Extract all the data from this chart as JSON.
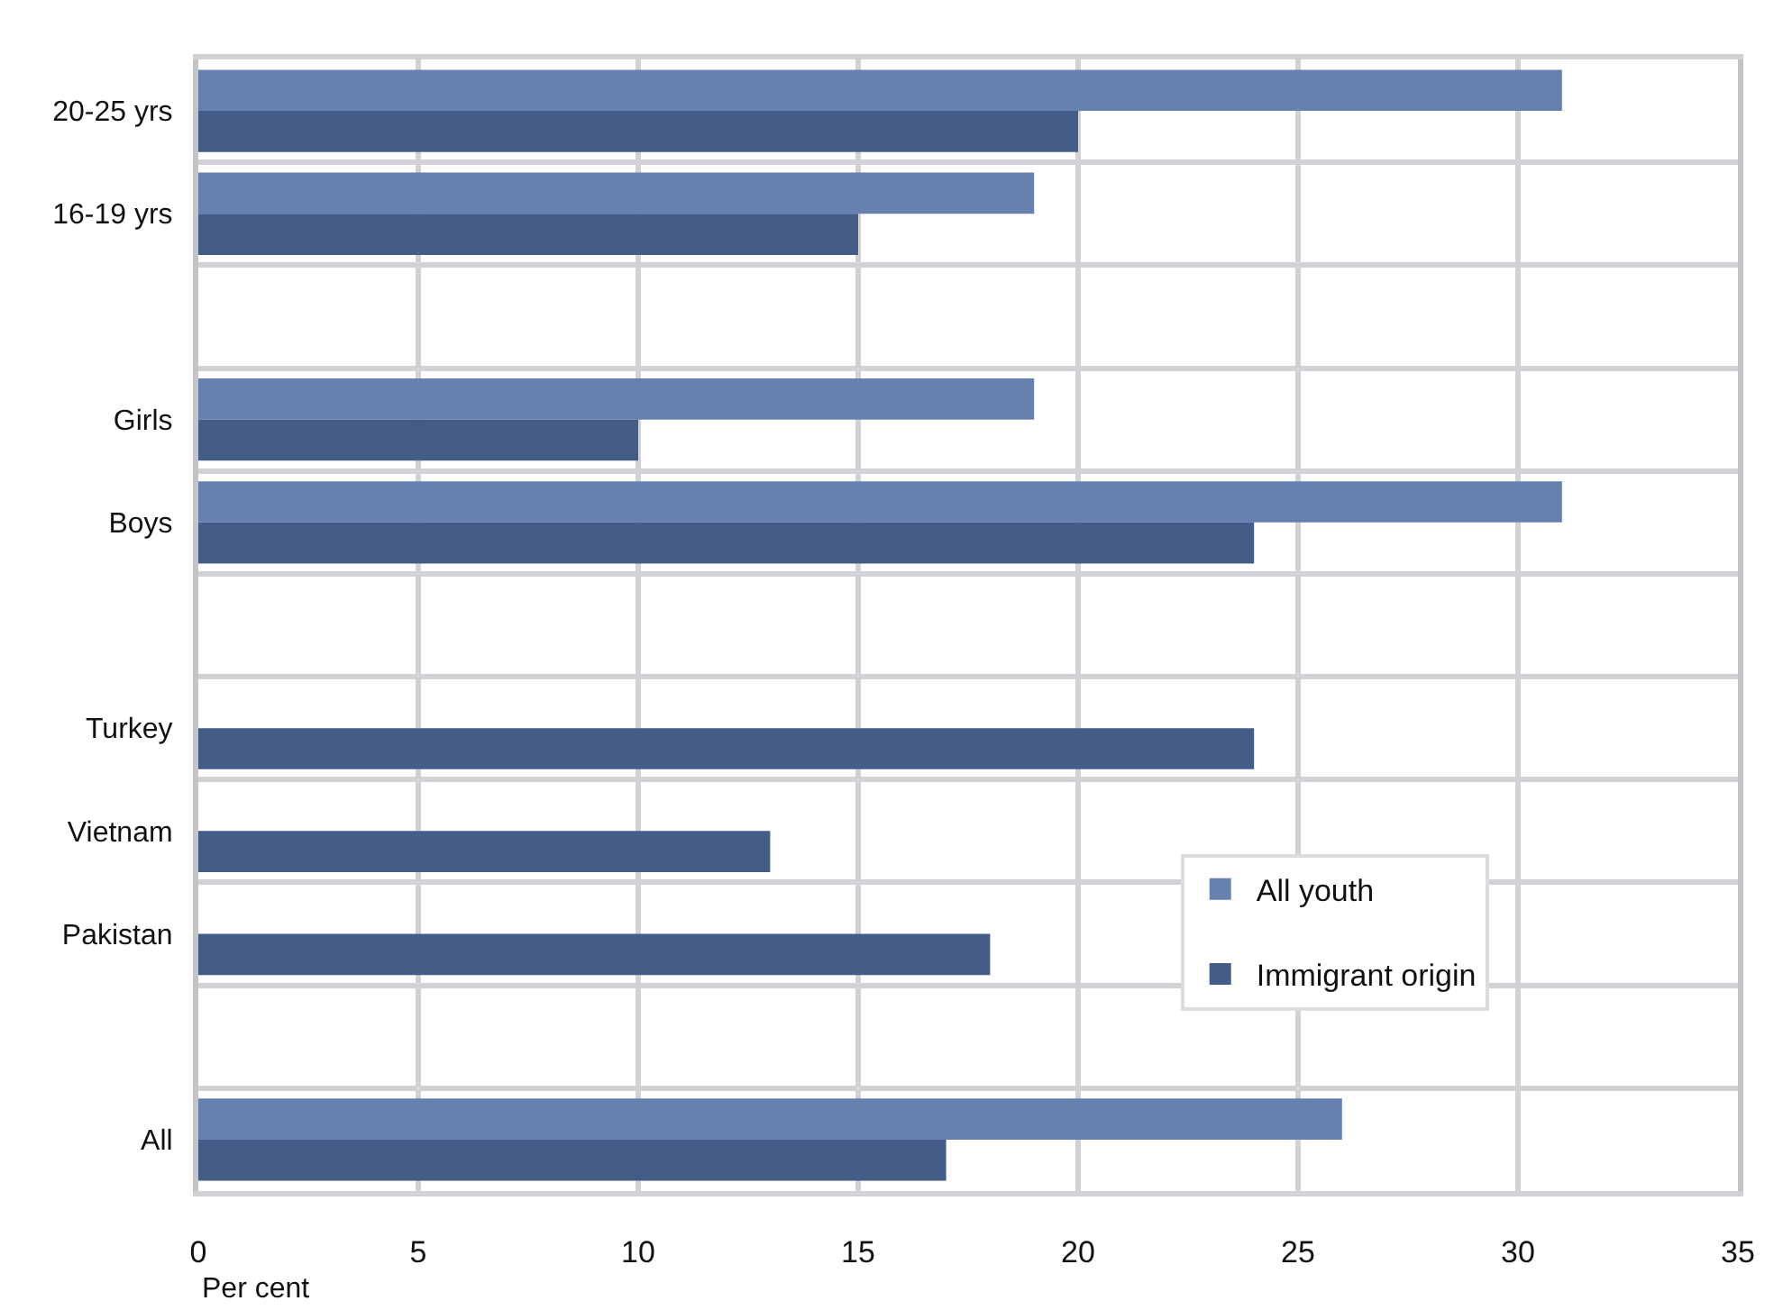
{
  "chart_data": {
    "type": "bar",
    "orientation": "horizontal",
    "categories": [
      "20-25 yrs",
      "16-19 yrs",
      null,
      "Girls",
      "Boys",
      null,
      "Turkey",
      "Vietnam",
      "Pakistan",
      null,
      "All"
    ],
    "series": [
      {
        "name": "All youth",
        "color": "#6680b0",
        "values": [
          31,
          19,
          null,
          19,
          31,
          null,
          null,
          null,
          null,
          null,
          26
        ]
      },
      {
        "name": "Immigrant origin",
        "color": "#435d88",
        "values": [
          20,
          15,
          null,
          10,
          24,
          null,
          24,
          13,
          18,
          null,
          17
        ]
      }
    ],
    "xlabel": "Per cent",
    "xlim": [
      0,
      35
    ],
    "xticks": [
      0,
      5,
      10,
      15,
      20,
      25,
      30,
      35
    ],
    "grid": true,
    "legend": "bottom right"
  }
}
